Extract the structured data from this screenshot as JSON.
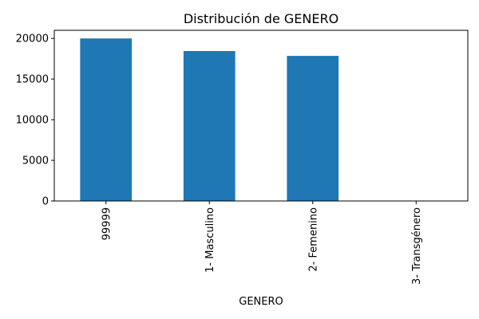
{
  "chart_data": {
    "type": "bar",
    "title": "Distribución de GENERO",
    "xlabel": "GENERO",
    "ylabel": "",
    "categories": [
      "99999",
      "1- Masculino",
      "2- Femenino",
      "3- Transgénero"
    ],
    "values": [
      20000,
      18450,
      17850,
      15
    ],
    "ylim": [
      0,
      21000
    ],
    "yticks": [
      0,
      5000,
      10000,
      15000,
      20000
    ],
    "bar_color": "#1f77b4",
    "grid": false,
    "legend": "none"
  }
}
